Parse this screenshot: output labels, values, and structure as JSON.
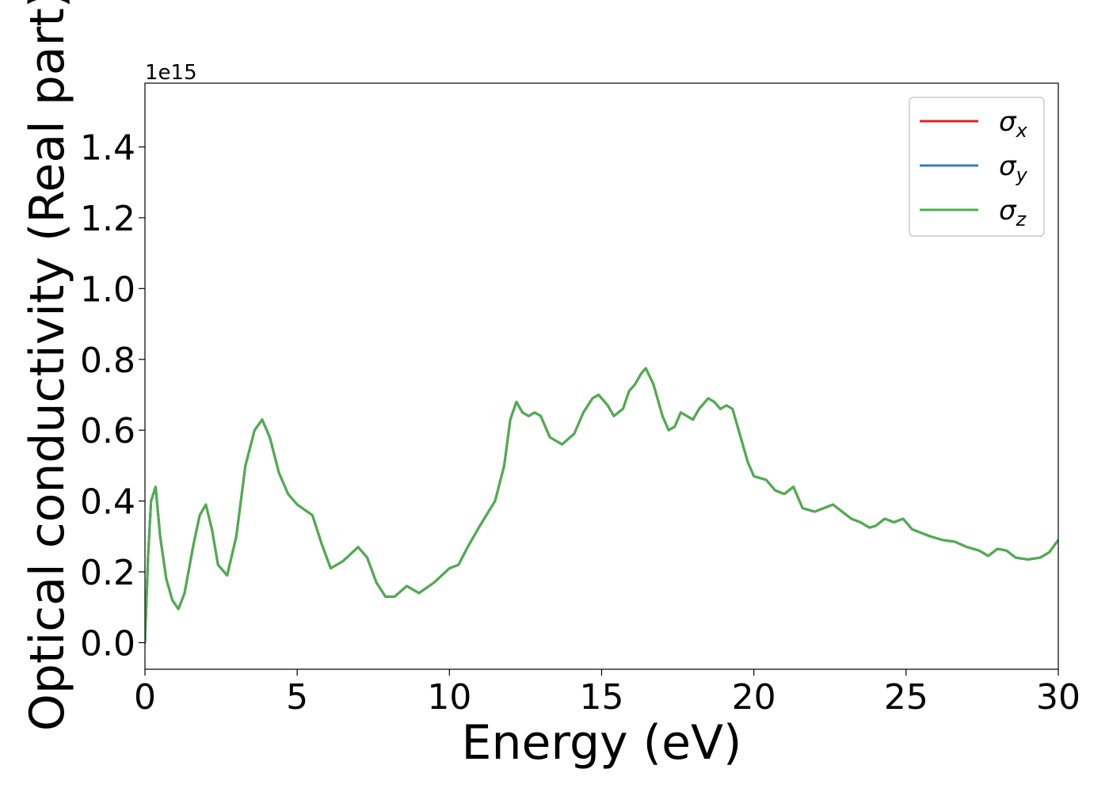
{
  "chart_data": {
    "type": "line",
    "title": "",
    "xlabel": "Energy (eV)",
    "ylabel": "Optical conductivity (Real part)",
    "y_offset_label": "1e15",
    "xlim": [
      0,
      30
    ],
    "ylim": [
      -0.075,
      1.58
    ],
    "x_ticks": [
      0,
      5,
      10,
      15,
      20,
      25,
      30
    ],
    "x_tick_labels": [
      "0",
      "5",
      "10",
      "15",
      "20",
      "25",
      "30"
    ],
    "y_ticks": [
      0.0,
      0.2,
      0.4,
      0.6,
      0.8,
      1.0,
      1.2,
      1.4
    ],
    "y_tick_labels": [
      "0.0",
      "0.2",
      "0.4",
      "0.6",
      "0.8",
      "1.0",
      "1.2",
      "1.4"
    ],
    "grid": false,
    "legend_position": "top-right",
    "legend": [
      {
        "symbol": "σ",
        "subscript": "x",
        "color": "#d62728"
      },
      {
        "symbol": "σ",
        "subscript": "y",
        "color": "#3a7bbf"
      },
      {
        "symbol": "σ",
        "subscript": "z",
        "color": "#4daf4a"
      }
    ],
    "x": [
      0,
      0.1,
      0.2,
      0.35,
      0.5,
      0.7,
      0.9,
      1.1,
      1.3,
      1.6,
      1.8,
      2.0,
      2.2,
      2.4,
      2.7,
      3.0,
      3.3,
      3.6,
      3.85,
      4.1,
      4.4,
      4.7,
      5.0,
      5.5,
      5.8,
      6.1,
      6.5,
      7.0,
      7.3,
      7.6,
      7.9,
      8.2,
      8.6,
      9.0,
      9.5,
      10.0,
      10.3,
      10.6,
      11.0,
      11.5,
      11.8,
      12.0,
      12.2,
      12.4,
      12.6,
      12.8,
      13.0,
      13.3,
      13.7,
      14.1,
      14.4,
      14.7,
      14.9,
      15.2,
      15.4,
      15.7,
      15.9,
      16.1,
      16.3,
      16.45,
      16.7,
      17.0,
      17.2,
      17.4,
      17.6,
      17.8,
      18.0,
      18.2,
      18.5,
      18.7,
      18.9,
      19.1,
      19.3,
      19.5,
      19.8,
      20.0,
      20.2,
      20.4,
      20.7,
      21.0,
      21.3,
      21.6,
      22.0,
      22.3,
      22.6,
      22.9,
      23.2,
      23.5,
      23.8,
      24.0,
      24.3,
      24.6,
      24.9,
      25.2,
      25.5,
      25.8,
      26.2,
      26.6,
      27.0,
      27.4,
      27.7,
      28.0,
      28.3,
      28.6,
      29.0,
      29.4,
      29.7,
      30.0
    ],
    "series": [
      {
        "name": "σx",
        "color": "#d62728",
        "values": [
          0.0,
          0.24,
          0.4,
          0.44,
          0.3,
          0.18,
          0.12,
          0.095,
          0.14,
          0.28,
          0.36,
          0.39,
          0.32,
          0.22,
          0.19,
          0.3,
          0.5,
          0.6,
          0.63,
          0.58,
          0.48,
          0.42,
          0.39,
          0.36,
          0.28,
          0.21,
          0.23,
          0.27,
          0.24,
          0.17,
          0.13,
          0.13,
          0.16,
          0.14,
          0.17,
          0.21,
          0.22,
          0.27,
          0.33,
          0.4,
          0.5,
          0.63,
          0.68,
          0.65,
          0.64,
          0.65,
          0.64,
          0.58,
          0.56,
          0.59,
          0.65,
          0.69,
          0.7,
          0.67,
          0.64,
          0.66,
          0.71,
          0.73,
          0.76,
          0.775,
          0.73,
          0.64,
          0.6,
          0.61,
          0.65,
          0.64,
          0.63,
          0.66,
          0.69,
          0.68,
          0.66,
          0.67,
          0.66,
          0.6,
          0.51,
          0.47,
          0.465,
          0.46,
          0.43,
          0.42,
          0.44,
          0.38,
          0.37,
          0.38,
          0.39,
          0.37,
          0.35,
          0.34,
          0.325,
          0.33,
          0.35,
          0.34,
          0.35,
          0.32,
          0.31,
          0.3,
          0.29,
          0.285,
          0.27,
          0.26,
          0.245,
          0.265,
          0.26,
          0.24,
          0.235,
          0.24,
          0.255,
          0.29
        ]
      },
      {
        "name": "σy",
        "color": "#3a7bbf",
        "values": [
          0.0,
          0.24,
          0.4,
          0.44,
          0.3,
          0.18,
          0.12,
          0.095,
          0.14,
          0.28,
          0.36,
          0.39,
          0.32,
          0.22,
          0.19,
          0.3,
          0.5,
          0.6,
          0.63,
          0.58,
          0.48,
          0.42,
          0.39,
          0.36,
          0.28,
          0.21,
          0.23,
          0.27,
          0.24,
          0.17,
          0.13,
          0.13,
          0.16,
          0.14,
          0.17,
          0.21,
          0.22,
          0.27,
          0.33,
          0.4,
          0.5,
          0.63,
          0.68,
          0.65,
          0.64,
          0.65,
          0.64,
          0.58,
          0.56,
          0.59,
          0.65,
          0.69,
          0.7,
          0.67,
          0.64,
          0.66,
          0.71,
          0.73,
          0.76,
          0.775,
          0.73,
          0.64,
          0.6,
          0.61,
          0.65,
          0.64,
          0.63,
          0.66,
          0.69,
          0.68,
          0.66,
          0.67,
          0.66,
          0.6,
          0.51,
          0.47,
          0.465,
          0.46,
          0.43,
          0.42,
          0.44,
          0.38,
          0.37,
          0.38,
          0.39,
          0.37,
          0.35,
          0.34,
          0.325,
          0.33,
          0.35,
          0.34,
          0.35,
          0.32,
          0.31,
          0.3,
          0.29,
          0.285,
          0.27,
          0.26,
          0.245,
          0.265,
          0.26,
          0.24,
          0.235,
          0.24,
          0.255,
          0.29
        ]
      },
      {
        "name": "σz",
        "color": "#4daf4a",
        "values": [
          0.0,
          0.24,
          0.4,
          0.44,
          0.3,
          0.18,
          0.12,
          0.095,
          0.14,
          0.28,
          0.36,
          0.39,
          0.32,
          0.22,
          0.19,
          0.3,
          0.5,
          0.6,
          0.63,
          0.58,
          0.48,
          0.42,
          0.39,
          0.36,
          0.28,
          0.21,
          0.23,
          0.27,
          0.24,
          0.17,
          0.13,
          0.13,
          0.16,
          0.14,
          0.17,
          0.21,
          0.22,
          0.27,
          0.33,
          0.4,
          0.5,
          0.63,
          0.68,
          0.65,
          0.64,
          0.65,
          0.64,
          0.58,
          0.56,
          0.59,
          0.65,
          0.69,
          0.7,
          0.67,
          0.64,
          0.66,
          0.71,
          0.73,
          0.76,
          0.775,
          0.73,
          0.64,
          0.6,
          0.61,
          0.65,
          0.64,
          0.63,
          0.66,
          0.69,
          0.68,
          0.66,
          0.67,
          0.66,
          0.6,
          0.51,
          0.47,
          0.465,
          0.46,
          0.43,
          0.42,
          0.44,
          0.38,
          0.37,
          0.38,
          0.39,
          0.37,
          0.35,
          0.34,
          0.325,
          0.33,
          0.35,
          0.34,
          0.35,
          0.32,
          0.31,
          0.3,
          0.29,
          0.285,
          0.27,
          0.26,
          0.245,
          0.265,
          0.26,
          0.24,
          0.235,
          0.24,
          0.255,
          0.29
        ]
      }
    ]
  }
}
